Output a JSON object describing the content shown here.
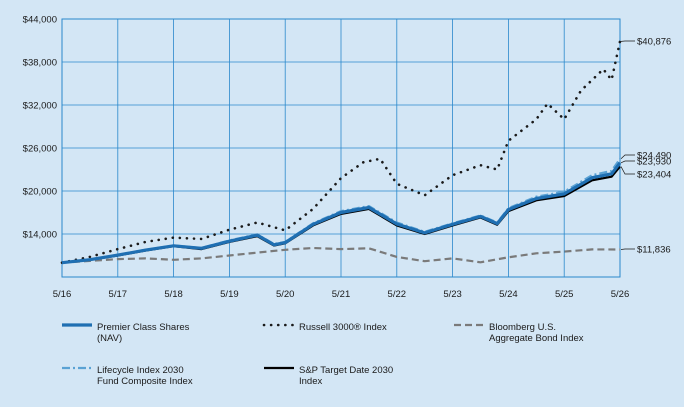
{
  "chart_data": {
    "type": "line",
    "x_ticks": [
      "5/16",
      "5/17",
      "5/18",
      "5/19",
      "5/20",
      "5/21",
      "5/22",
      "5/23",
      "5/24",
      "5/25",
      "5/26"
    ],
    "y_ticks": [
      "$14,000",
      "$20,000",
      "$26,000",
      "$32,000",
      "$38,000",
      "$44,000"
    ],
    "y_tick_values": [
      14000,
      20000,
      26000,
      32000,
      38000,
      44000
    ],
    "ylim": [
      8000,
      44000
    ],
    "xlim": [
      0,
      10
    ],
    "grid": true,
    "legend_position": "bottom",
    "end_labels": [
      {
        "text": "$40,876",
        "value": 40876
      },
      {
        "text": "$24,490",
        "value": 24490
      },
      {
        "text": "$23,930",
        "value": 23930
      },
      {
        "text": "$23,404",
        "value": 23404
      },
      {
        "text": "$11,836",
        "value": 11836
      }
    ],
    "series": [
      {
        "name": "Bloomberg U.S. Aggregate Bond Index",
        "color": "#7a7a7a",
        "style": "dashed",
        "points": [
          [
            0,
            10000
          ],
          [
            0.5,
            10250
          ],
          [
            1,
            10500
          ],
          [
            1.5,
            10600
          ],
          [
            2,
            10400
          ],
          [
            2.5,
            10600
          ],
          [
            3,
            11000
          ],
          [
            3.5,
            11400
          ],
          [
            4,
            11800
          ],
          [
            4.5,
            12050
          ],
          [
            5,
            11900
          ],
          [
            5.5,
            12000
          ],
          [
            6,
            10800
          ],
          [
            6.5,
            10200
          ],
          [
            7,
            10600
          ],
          [
            7.5,
            10050
          ],
          [
            8,
            10750
          ],
          [
            8.5,
            11300
          ],
          [
            9,
            11550
          ],
          [
            9.5,
            11850
          ],
          [
            10,
            11836
          ]
        ]
      },
      {
        "name": "Russell 3000® Index",
        "color": "#1a1a1a",
        "style": "dotted",
        "points": [
          [
            0,
            10000
          ],
          [
            0.5,
            10800
          ],
          [
            1,
            11900
          ],
          [
            1.5,
            12900
          ],
          [
            2,
            13500
          ],
          [
            2.5,
            13300
          ],
          [
            3,
            14600
          ],
          [
            3.5,
            15600
          ],
          [
            4,
            14500
          ],
          [
            4.5,
            17500
          ],
          [
            5,
            21800
          ],
          [
            5.4,
            24000
          ],
          [
            5.7,
            24500
          ],
          [
            6,
            21000
          ],
          [
            6.5,
            19400
          ],
          [
            7,
            22200
          ],
          [
            7.5,
            23600
          ],
          [
            7.8,
            23000
          ],
          [
            8,
            27000
          ],
          [
            8.5,
            30000
          ],
          [
            8.7,
            32200
          ],
          [
            9,
            30000
          ],
          [
            9.3,
            34000
          ],
          [
            9.7,
            37000
          ],
          [
            9.85,
            35500
          ],
          [
            10,
            40876
          ]
        ]
      },
      {
        "name": "S&P Target Date 2030 Index",
        "color": "#000000",
        "style": "solid",
        "points": [
          [
            0,
            10000
          ],
          [
            0.5,
            10400
          ],
          [
            1,
            11000
          ],
          [
            1.5,
            11700
          ],
          [
            2,
            12300
          ],
          [
            2.5,
            11900
          ],
          [
            3,
            12900
          ],
          [
            3.5,
            13700
          ],
          [
            3.8,
            12400
          ],
          [
            4,
            12700
          ],
          [
            4.5,
            15200
          ],
          [
            5,
            16800
          ],
          [
            5.5,
            17500
          ],
          [
            6,
            15200
          ],
          [
            6.5,
            14000
          ],
          [
            7,
            15200
          ],
          [
            7.5,
            16300
          ],
          [
            7.8,
            15300
          ],
          [
            8,
            17200
          ],
          [
            8.5,
            18700
          ],
          [
            9,
            19300
          ],
          [
            9.5,
            21500
          ],
          [
            9.85,
            22000
          ],
          [
            10,
            23404
          ]
        ]
      },
      {
        "name": "Lifecycle Index 2030 Fund Composite Index",
        "color": "#5aa2d4",
        "style": "dashdot",
        "points": [
          [
            0,
            10000
          ],
          [
            0.5,
            10450
          ],
          [
            1,
            11100
          ],
          [
            1.5,
            11800
          ],
          [
            2,
            12400
          ],
          [
            2.5,
            12050
          ],
          [
            3,
            13100
          ],
          [
            3.5,
            13950
          ],
          [
            3.8,
            12600
          ],
          [
            4,
            12900
          ],
          [
            4.5,
            15500
          ],
          [
            5,
            17200
          ],
          [
            5.5,
            17900
          ],
          [
            6,
            15600
          ],
          [
            6.5,
            14300
          ],
          [
            7,
            15500
          ],
          [
            7.5,
            16600
          ],
          [
            7.8,
            15600
          ],
          [
            8,
            17600
          ],
          [
            8.5,
            19200
          ],
          [
            9,
            19900
          ],
          [
            9.5,
            22200
          ],
          [
            9.85,
            22800
          ],
          [
            10,
            24490
          ]
        ]
      },
      {
        "name": "Premier Class Shares (NAV)",
        "color": "#1f6fb2",
        "style": "solid",
        "points": [
          [
            0,
            10000
          ],
          [
            0.5,
            10420
          ],
          [
            1,
            11050
          ],
          [
            1.5,
            11750
          ],
          [
            2,
            12350
          ],
          [
            2.5,
            12000
          ],
          [
            3,
            13000
          ],
          [
            3.5,
            13850
          ],
          [
            3.8,
            12500
          ],
          [
            4,
            12800
          ],
          [
            4.5,
            15350
          ],
          [
            5,
            17000
          ],
          [
            5.5,
            17700
          ],
          [
            6,
            15400
          ],
          [
            6.5,
            14150
          ],
          [
            7,
            15350
          ],
          [
            7.5,
            16450
          ],
          [
            7.8,
            15450
          ],
          [
            8,
            17400
          ],
          [
            8.5,
            18950
          ],
          [
            9,
            19600
          ],
          [
            9.5,
            21850
          ],
          [
            9.85,
            22400
          ],
          [
            10,
            23930
          ]
        ]
      }
    ],
    "legend": [
      {
        "label": "Premier Class Shares\n(NAV)",
        "color": "#1f6fb2",
        "style": "solid"
      },
      {
        "label": "Russell 3000® Index",
        "color": "#1a1a1a",
        "style": "dotted"
      },
      {
        "label": "Bloomberg U.S.\nAggregate Bond Index",
        "color": "#7a7a7a",
        "style": "dashed"
      },
      {
        "label": "Lifecycle Index 2030\nFund Composite Index",
        "color": "#5aa2d4",
        "style": "dashdot"
      },
      {
        "label": "S&P Target Date 2030\nIndex",
        "color": "#000000",
        "style": "solid"
      }
    ]
  }
}
